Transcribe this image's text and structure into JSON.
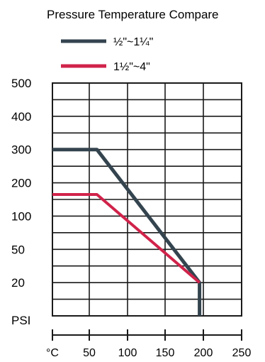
{
  "chart_data": {
    "type": "line",
    "title": "Pressure Temperature Compare",
    "ylabel": "PSI",
    "y_ticks": [
      "500",
      "400",
      "300",
      "200",
      "100",
      "50",
      "20"
    ],
    "x_ticks": [
      "°C",
      "50",
      "100",
      "150",
      "200",
      "250"
    ],
    "x_tick_values": [
      0,
      50,
      100,
      150,
      200,
      250
    ],
    "xlim": [
      0,
      250
    ],
    "grid": true,
    "legend_position": "top",
    "series": [
      {
        "name": "½\"~1¼\"",
        "color": "#34444f",
        "points": [
          [
            0,
            "300"
          ],
          [
            60,
            "300"
          ],
          [
            195,
            "20"
          ],
          [
            195,
            "PSI"
          ]
        ]
      },
      {
        "name": "1½\"~4\"",
        "color": "#d0234a",
        "points": [
          [
            0,
            "165"
          ],
          [
            60,
            "165"
          ],
          [
            195,
            "20"
          ]
        ]
      }
    ]
  }
}
